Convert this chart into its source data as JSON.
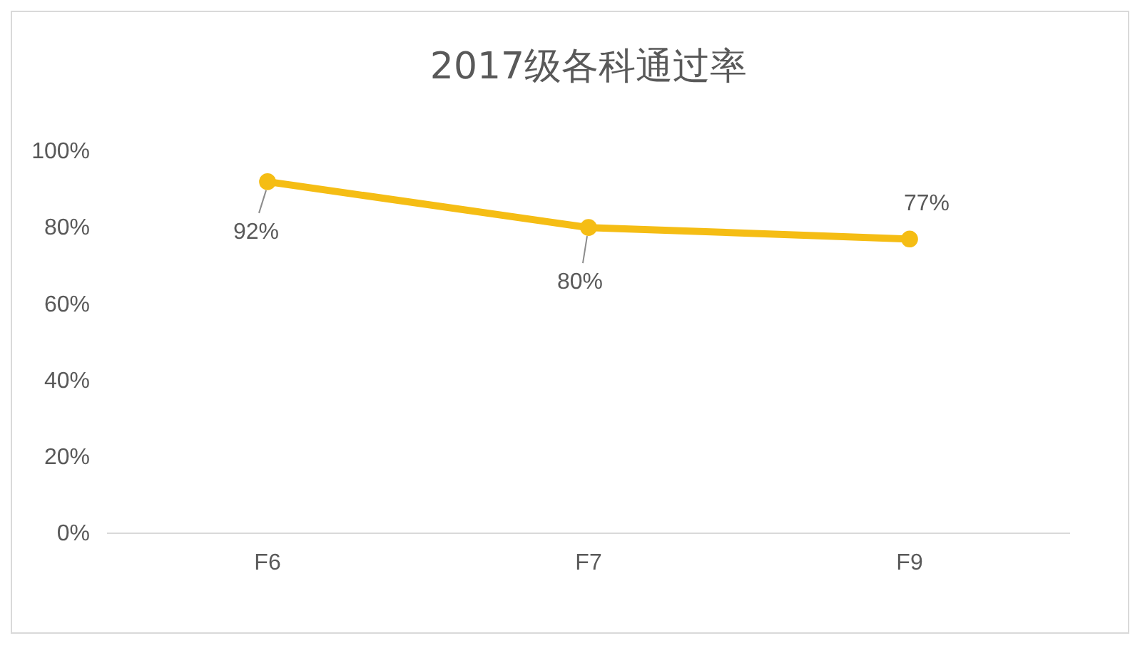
{
  "chart_data": {
    "type": "line",
    "title": "2017级各科通过率",
    "categories": [
      "F6",
      "F7",
      "F9"
    ],
    "series": [
      {
        "color": "#f5bd14",
        "values": [
          92,
          80,
          77
        ],
        "value_labels": [
          "92%",
          "80%",
          "77%"
        ]
      }
    ],
    "ylim": [
      0,
      100
    ],
    "yticks": [
      {
        "value": 0,
        "label": "0%"
      },
      {
        "value": 20,
        "label": "20%"
      },
      {
        "value": 40,
        "label": "40%"
      },
      {
        "value": 60,
        "label": "60%"
      },
      {
        "value": 80,
        "label": "80%"
      },
      {
        "value": 100,
        "label": "100%"
      }
    ],
    "grid": false,
    "marker": "circle",
    "line_style": "solid"
  }
}
